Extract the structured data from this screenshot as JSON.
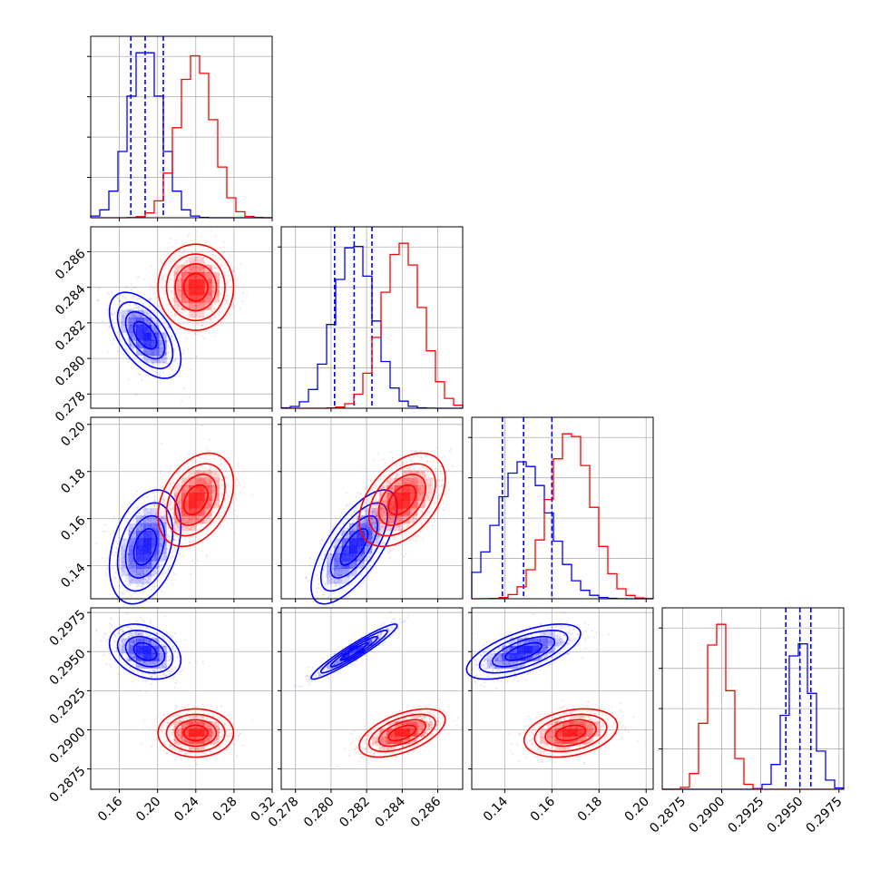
{
  "colors": {
    "blue": "#0000ff",
    "red": "#ff0000",
    "grid": "#b0b0b0"
  },
  "chart_data": {
    "type": "corner",
    "grid": true,
    "parameters": [
      {
        "range": [
          0.13,
          0.32
        ],
        "ticks": [
          0.16,
          0.2,
          0.24,
          0.28,
          0.32
        ],
        "labels": [
          "0.16",
          "0.20",
          "0.24",
          "0.28",
          "0.32"
        ]
      },
      {
        "range": [
          0.2772,
          0.2874
        ],
        "ticks": [
          0.278,
          0.28,
          0.282,
          0.284,
          0.286
        ],
        "labels": [
          "0.278",
          "0.280",
          "0.282",
          "0.284",
          "0.286"
        ]
      },
      {
        "range": [
          0.126,
          0.203
        ],
        "ticks": [
          0.14,
          0.16,
          0.18,
          0.2
        ],
        "labels": [
          "0.14",
          "0.16",
          "0.18",
          "0.20"
        ]
      },
      {
        "range": [
          0.2862,
          0.2978
        ],
        "ticks": [
          0.2875,
          0.29,
          0.2925,
          0.295,
          0.2975
        ],
        "labels": [
          "0.2875",
          "0.2900",
          "0.2925",
          "0.2950",
          "0.2975"
        ]
      }
    ],
    "series": [
      {
        "color": "blue",
        "mean": [
          0.187,
          0.2813,
          0.148,
          0.295
        ],
        "sd": [
          0.017,
          0.0011,
          0.011,
          0.0008
        ],
        "corr": {
          "0-1": -0.55,
          "0-2": 0.35,
          "0-3": -0.3,
          "1-2": 0.7,
          "1-3": 0.95,
          "2-3": 0.65
        },
        "quantiles": [
          [
            0.172,
            0.187,
            0.206
          ],
          [
            0.2802,
            0.2813,
            0.2823
          ],
          [
            0.139,
            0.148,
            0.16
          ],
          [
            0.2941,
            0.295,
            0.2957
          ]
        ]
      },
      {
        "color": "red",
        "mean": [
          0.24,
          0.284,
          0.168,
          0.2898
        ],
        "sd": [
          0.018,
          0.0011,
          0.009,
          0.0007
        ],
        "corr": {
          "0-1": 0.0,
          "0-2": 0.35,
          "0-3": 0.0,
          "1-2": 0.45,
          "1-3": 0.55,
          "2-3": 0.3
        }
      }
    ]
  }
}
